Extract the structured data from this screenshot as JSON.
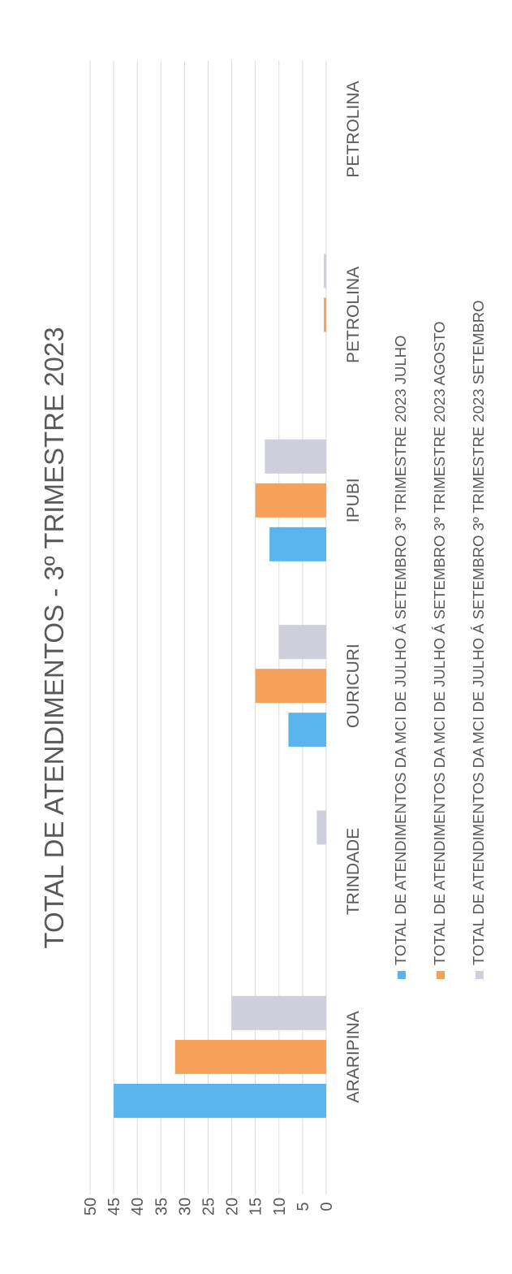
{
  "chart_data": {
    "type": "bar",
    "orientation": "horizontal",
    "title": "TOTAL DE ATENDIMENTOS -  3º TRIMESTRE 2023",
    "categories": [
      "ARARIPINA",
      "TRINDADE",
      "OURICURI",
      "IPUBI",
      "PETROLINA",
      "PETROLINA"
    ],
    "series": [
      {
        "name": "TOTAL DE ATENDIMENTOS DA MCI DE JULHO Á SETEMBRO  3º TRIMESTRE 2023 JULHO",
        "color": "#5ab4ee",
        "values": [
          45,
          0,
          8,
          12,
          0,
          0
        ]
      },
      {
        "name": "TOTAL DE ATENDIMENTOS DA MCI DE JULHO Á SETEMBRO  3º TRIMESTRE 2023 AGOSTO",
        "color": "#f5a15a",
        "values": [
          32,
          0,
          15,
          15,
          0.5,
          0
        ]
      },
      {
        "name": "TOTAL DE ATENDIMENTOS DA MCI DE JULHO Á SETEMBRO  3º TRIMESTRE 2023 SETEMBRO",
        "color": "#cfcfdc",
        "values": [
          20,
          2,
          10,
          13,
          0.5,
          0
        ]
      }
    ],
    "xlim": [
      0,
      50
    ],
    "ticks": [
      "0",
      "5",
      "10",
      "15",
      "20",
      "25",
      "30",
      "35",
      "40",
      "45",
      "50"
    ],
    "grid": true,
    "legend_position": "bottom"
  }
}
